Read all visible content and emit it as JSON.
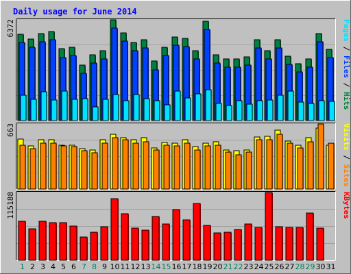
{
  "chart_data": {
    "type": "bar",
    "title": "Daily usage for June 2014",
    "categories": [
      "1",
      "2",
      "3",
      "4",
      "5",
      "6",
      "7",
      "8",
      "9",
      "10",
      "11",
      "12",
      "13",
      "14",
      "15",
      "16",
      "17",
      "18",
      "19",
      "20",
      "21",
      "22",
      "23",
      "24",
      "25",
      "26",
      "27",
      "28",
      "29",
      "30",
      "31"
    ],
    "weekend_days": [
      "1",
      "7",
      "8",
      "14",
      "15",
      "21",
      "22",
      "28",
      "29"
    ],
    "colors": {
      "hits": "#008040",
      "files": "#0040ff",
      "pages": "#00e0ff",
      "visits": "#ffff00",
      "sites": "#ff8000",
      "kbytes": "#ff0000",
      "weekday_label": "#000000",
      "weekend_label": "#00805c",
      "title": "#0000ff"
    },
    "panels": [
      {
        "id": "usage",
        "axis_max_label": "6372",
        "ymax": 6372,
        "legend": [
          {
            "key": "hits",
            "label": "Hits"
          },
          {
            "key": "files",
            "label": "Files"
          },
          {
            "key": "pages",
            "label": "Pages"
          }
        ],
        "series": [
          {
            "name": "Hits",
            "key": "hits",
            "values": [
              5450,
              5140,
              5490,
              5620,
              4530,
              4630,
              3530,
              4140,
              4400,
              6372,
              5550,
              4960,
              5110,
              3750,
              4620,
              5280,
              5220,
              4420,
              6270,
              4180,
              3900,
              3900,
              4040,
              5100,
              4400,
              5130,
              4060,
              3590,
              3880,
              5520,
              4510
            ]
          },
          {
            "name": "Files",
            "key": "files",
            "values": [
              4930,
              4620,
              4970,
              5100,
              4000,
              4100,
              3010,
              3620,
              3880,
              5850,
              5030,
              4430,
              4590,
              3220,
              4100,
              4760,
              4700,
              3900,
              5750,
              3660,
              3380,
              3380,
              3520,
              4580,
              3880,
              4610,
              3540,
              3070,
              3360,
              5000,
              3990
            ]
          },
          {
            "name": "Pages",
            "key": "pages",
            "values": [
              1620,
              1330,
              1830,
              1300,
              1870,
              1330,
              1370,
              850,
              1330,
              1630,
              1270,
              1630,
              1370,
              1250,
              1000,
              1850,
              1450,
              1700,
              1950,
              1100,
              950,
              1250,
              1050,
              1250,
              1300,
              1600,
              1850,
              1150,
              1100,
              1270,
              1200
            ]
          }
        ]
      },
      {
        "id": "visits",
        "axis_max_label": "663",
        "ymax": 663,
        "legend": [
          {
            "key": "sites",
            "label": "Sites"
          },
          {
            "key": "visits",
            "label": "Visits"
          }
        ],
        "series": [
          {
            "name": "Visits",
            "key": "visits",
            "values": [
              510,
              440,
              500,
              500,
              450,
              450,
              410,
              395,
              500,
              560,
              520,
              500,
              520,
              420,
              475,
              470,
              500,
              430,
              470,
              480,
              395,
              390,
              395,
              530,
              540,
              600,
              490,
              450,
              520,
              620,
              450
            ]
          },
          {
            "name": "Sites",
            "key": "sites",
            "values": [
              450,
              410,
              470,
              470,
              440,
              430,
              390,
              370,
              465,
              520,
              500,
              470,
              480,
              400,
              450,
              440,
              470,
              400,
              440,
              450,
              375,
              350,
              380,
              500,
              500,
              560,
              470,
              420,
              480,
              663,
              470
            ]
          }
        ]
      },
      {
        "id": "kbytes",
        "axis_max_label": "115188",
        "ymax": 115188,
        "legend": [
          {
            "key": "kbytes",
            "label": "KBytes"
          }
        ],
        "series": [
          {
            "name": "KBytes",
            "key": "kbytes",
            "values": [
              66000,
              53000,
              66000,
              63500,
              64000,
              58500,
              39000,
              48000,
              57000,
              105000,
              79000,
              55000,
              51000,
              75000,
              62000,
              86000,
              68500,
              96000,
              59000,
              47000,
              48000,
              52000,
              62000,
              56000,
              115188,
              57000,
              56000,
              56000,
              80000,
              55000,
              0
            ]
          }
        ]
      }
    ]
  }
}
